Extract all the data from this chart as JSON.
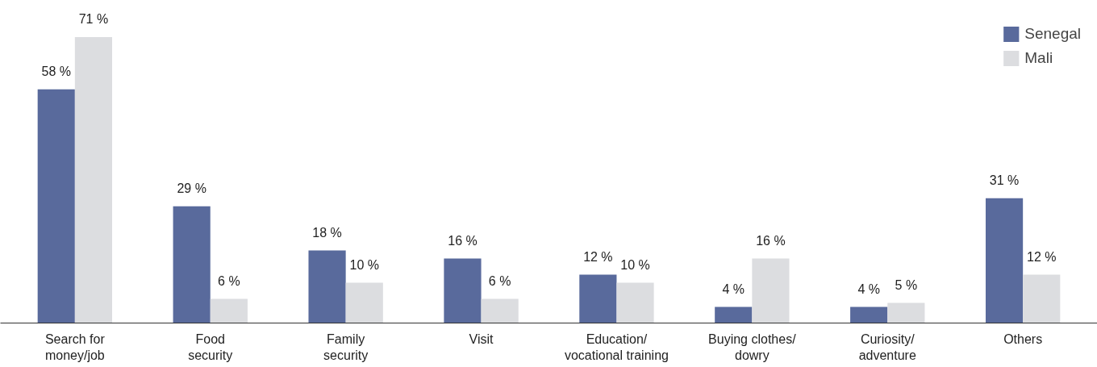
{
  "chart_data": {
    "type": "bar",
    "categories": [
      "Search for\nmoney/job",
      "Food\nsecurity",
      "Family\nsecurity",
      "Visit",
      "Education/\nvocational training",
      "Buying clothes/\ndowry",
      "Curiosity/\nadventure",
      "Others"
    ],
    "series": [
      {
        "name": "Senegal",
        "color": "#596a9c",
        "values": [
          58,
          29,
          18,
          16,
          12,
          4,
          4,
          31
        ],
        "value_labels": [
          "58 %",
          "29 %",
          "18 %",
          "16 %",
          "12 %",
          "4 %",
          "4 %",
          "31 %"
        ]
      },
      {
        "name": "Mali",
        "color": "#dcdde0",
        "values": [
          71,
          6,
          10,
          6,
          10,
          16,
          5,
          12
        ],
        "value_labels": [
          "71 %",
          "6 %",
          "10 %",
          "6 %",
          "10 %",
          "16 %",
          "5 %",
          "12 %"
        ]
      }
    ],
    "legend": "top right",
    "grid": false,
    "tick_labels": "x"
  }
}
